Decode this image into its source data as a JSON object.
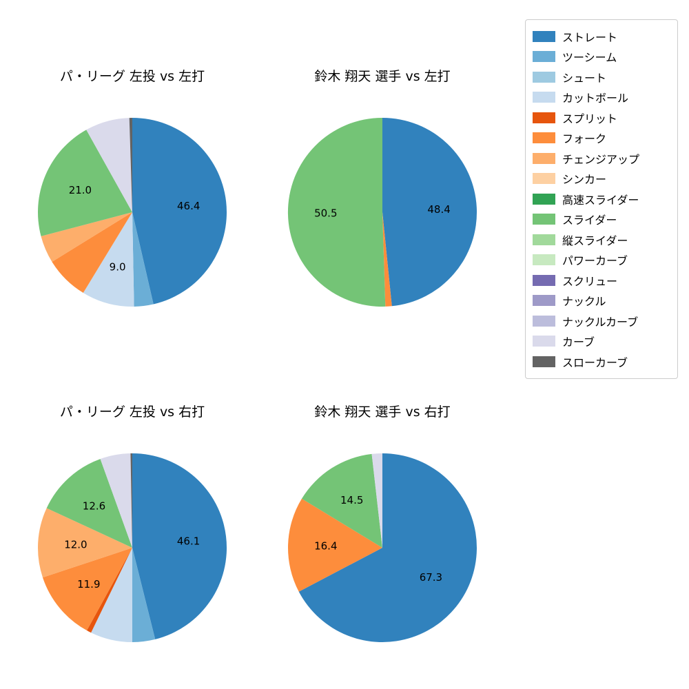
{
  "figure": {
    "background": "#ffffff"
  },
  "legend": {
    "position": "top-right",
    "items": [
      {
        "label": "ストレート",
        "color": "#3182bd"
      },
      {
        "label": "ツーシーム",
        "color": "#6baed6"
      },
      {
        "label": "シュート",
        "color": "#9ecae1"
      },
      {
        "label": "カットボール",
        "color": "#c6dbef"
      },
      {
        "label": "スプリット",
        "color": "#e6550d"
      },
      {
        "label": "フォーク",
        "color": "#fd8d3c"
      },
      {
        "label": "チェンジアップ",
        "color": "#fdae6b"
      },
      {
        "label": "シンカー",
        "color": "#fdd0a2"
      },
      {
        "label": "高速スライダー",
        "color": "#31a354"
      },
      {
        "label": "スライダー",
        "color": "#74c476"
      },
      {
        "label": "縦スライダー",
        "color": "#a1d99b"
      },
      {
        "label": "パワーカーブ",
        "color": "#c7e9c0"
      },
      {
        "label": "スクリュー",
        "color": "#756bb1"
      },
      {
        "label": "ナックル",
        "color": "#9e9ac8"
      },
      {
        "label": "ナックルカーブ",
        "color": "#bcbddc"
      },
      {
        "label": "カーブ",
        "color": "#dadaeb"
      },
      {
        "label": "スローカーブ",
        "color": "#636363"
      }
    ]
  },
  "chart_data": [
    {
      "type": "pie",
      "title": "パ・リーグ 左投 vs 左打",
      "start_angle": "top",
      "direction": "clockwise",
      "value_unit": "percent",
      "slices": [
        {
          "name": "ストレート",
          "value": 46.4,
          "labeled": true
        },
        {
          "name": "ツーシーム",
          "value": 3.3,
          "labeled": false
        },
        {
          "name": "カットボール",
          "value": 9.0,
          "labeled": true
        },
        {
          "name": "フォーク",
          "value": 7.5,
          "labeled": false
        },
        {
          "name": "チェンジアップ",
          "value": 4.7,
          "labeled": false
        },
        {
          "name": "スライダー",
          "value": 21.0,
          "labeled": true
        },
        {
          "name": "カーブ",
          "value": 7.6,
          "labeled": false
        },
        {
          "name": "スローカーブ",
          "value": 0.5,
          "labeled": false
        }
      ]
    },
    {
      "type": "pie",
      "title": "鈴木 翔天 選手 vs 左打",
      "start_angle": "top",
      "direction": "clockwise",
      "value_unit": "percent",
      "slices": [
        {
          "name": "ストレート",
          "value": 48.4,
          "labeled": true
        },
        {
          "name": "フォーク",
          "value": 1.1,
          "labeled": false
        },
        {
          "name": "スライダー",
          "value": 50.5,
          "labeled": true
        }
      ]
    },
    {
      "type": "pie",
      "title": "パ・リーグ 左投 vs 右打",
      "start_angle": "top",
      "direction": "clockwise",
      "value_unit": "percent",
      "slices": [
        {
          "name": "ストレート",
          "value": 46.1,
          "labeled": true
        },
        {
          "name": "ツーシーム",
          "value": 3.9,
          "labeled": false
        },
        {
          "name": "カットボール",
          "value": 7.2,
          "labeled": false
        },
        {
          "name": "スプリット",
          "value": 0.8,
          "labeled": false
        },
        {
          "name": "フォーク",
          "value": 11.9,
          "labeled": true
        },
        {
          "name": "チェンジアップ",
          "value": 12.0,
          "labeled": true
        },
        {
          "name": "スライダー",
          "value": 12.6,
          "labeled": true
        },
        {
          "name": "カーブ",
          "value": 5.2,
          "labeled": false
        },
        {
          "name": "スローカーブ",
          "value": 0.3,
          "labeled": false
        }
      ]
    },
    {
      "type": "pie",
      "title": "鈴木 翔天 選手 vs 右打",
      "start_angle": "top",
      "direction": "clockwise",
      "value_unit": "percent",
      "slices": [
        {
          "name": "ストレート",
          "value": 67.3,
          "labeled": true
        },
        {
          "name": "フォーク",
          "value": 16.4,
          "labeled": true
        },
        {
          "name": "スライダー",
          "value": 14.5,
          "labeled": true
        },
        {
          "name": "カーブ",
          "value": 1.8,
          "labeled": false
        }
      ]
    }
  ]
}
